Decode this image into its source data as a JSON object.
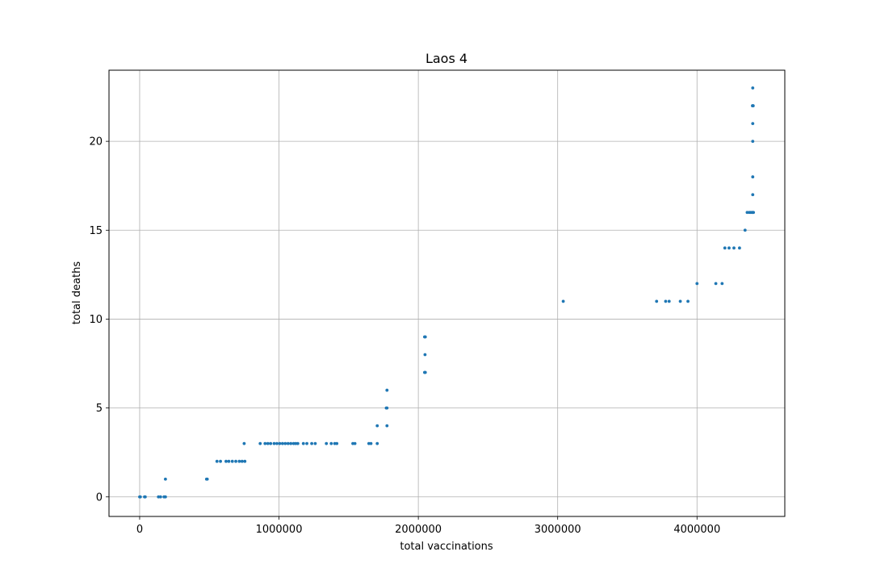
{
  "chart_data": {
    "type": "scatter",
    "title": "Laos 4",
    "xlabel": "total vaccinations",
    "ylabel": "total deaths",
    "xlim": [
      -220000,
      4630000
    ],
    "ylim": [
      -1.1,
      24.0
    ],
    "xticks": [
      0,
      1000000,
      2000000,
      3000000,
      4000000
    ],
    "xtick_labels": [
      "0",
      "1000000",
      "2000000",
      "3000000",
      "4000000"
    ],
    "yticks": [
      0,
      5,
      10,
      15,
      20
    ],
    "ytick_labels": [
      "0",
      "5",
      "10",
      "15",
      "20"
    ],
    "grid": true,
    "marker_color": "#1f77b4",
    "points": [
      {
        "x": 0,
        "y": 0
      },
      {
        "x": 5000,
        "y": 0
      },
      {
        "x": 35000,
        "y": 0
      },
      {
        "x": 40000,
        "y": 0
      },
      {
        "x": 135000,
        "y": 0
      },
      {
        "x": 150000,
        "y": 0
      },
      {
        "x": 175000,
        "y": 0
      },
      {
        "x": 185000,
        "y": 0
      },
      {
        "x": 185000,
        "y": 1
      },
      {
        "x": 480000,
        "y": 1
      },
      {
        "x": 485000,
        "y": 1
      },
      {
        "x": 555000,
        "y": 2
      },
      {
        "x": 580000,
        "y": 2
      },
      {
        "x": 620000,
        "y": 2
      },
      {
        "x": 640000,
        "y": 2
      },
      {
        "x": 665000,
        "y": 2
      },
      {
        "x": 690000,
        "y": 2
      },
      {
        "x": 715000,
        "y": 2
      },
      {
        "x": 735000,
        "y": 2
      },
      {
        "x": 755000,
        "y": 2
      },
      {
        "x": 750000,
        "y": 3
      },
      {
        "x": 865000,
        "y": 3
      },
      {
        "x": 900000,
        "y": 3
      },
      {
        "x": 920000,
        "y": 3
      },
      {
        "x": 940000,
        "y": 3
      },
      {
        "x": 965000,
        "y": 3
      },
      {
        "x": 985000,
        "y": 3
      },
      {
        "x": 1005000,
        "y": 3
      },
      {
        "x": 1025000,
        "y": 3
      },
      {
        "x": 1045000,
        "y": 3
      },
      {
        "x": 1065000,
        "y": 3
      },
      {
        "x": 1085000,
        "y": 3
      },
      {
        "x": 1105000,
        "y": 3
      },
      {
        "x": 1120000,
        "y": 3
      },
      {
        "x": 1135000,
        "y": 3
      },
      {
        "x": 1175000,
        "y": 3
      },
      {
        "x": 1200000,
        "y": 3
      },
      {
        "x": 1235000,
        "y": 3
      },
      {
        "x": 1260000,
        "y": 3
      },
      {
        "x": 1340000,
        "y": 3
      },
      {
        "x": 1375000,
        "y": 3
      },
      {
        "x": 1400000,
        "y": 3
      },
      {
        "x": 1415000,
        "y": 3
      },
      {
        "x": 1530000,
        "y": 3
      },
      {
        "x": 1545000,
        "y": 3
      },
      {
        "x": 1645000,
        "y": 3
      },
      {
        "x": 1660000,
        "y": 3
      },
      {
        "x": 1705000,
        "y": 3
      },
      {
        "x": 1705000,
        "y": 4
      },
      {
        "x": 1775000,
        "y": 4
      },
      {
        "x": 1770000,
        "y": 5
      },
      {
        "x": 1775000,
        "y": 5
      },
      {
        "x": 1775000,
        "y": 6
      },
      {
        "x": 2045000,
        "y": 7
      },
      {
        "x": 2050000,
        "y": 7
      },
      {
        "x": 2048000,
        "y": 8
      },
      {
        "x": 2045000,
        "y": 9
      },
      {
        "x": 2050000,
        "y": 9
      },
      {
        "x": 3040000,
        "y": 11
      },
      {
        "x": 3710000,
        "y": 11
      },
      {
        "x": 3775000,
        "y": 11
      },
      {
        "x": 3800000,
        "y": 11
      },
      {
        "x": 3880000,
        "y": 11
      },
      {
        "x": 3935000,
        "y": 11
      },
      {
        "x": 4000000,
        "y": 12
      },
      {
        "x": 4135000,
        "y": 12
      },
      {
        "x": 4180000,
        "y": 12
      },
      {
        "x": 4200000,
        "y": 14
      },
      {
        "x": 4230000,
        "y": 14
      },
      {
        "x": 4265000,
        "y": 14
      },
      {
        "x": 4305000,
        "y": 14
      },
      {
        "x": 4345000,
        "y": 15
      },
      {
        "x": 4360000,
        "y": 16
      },
      {
        "x": 4375000,
        "y": 16
      },
      {
        "x": 4385000,
        "y": 16
      },
      {
        "x": 4395000,
        "y": 16
      },
      {
        "x": 4400000,
        "y": 16
      },
      {
        "x": 4405000,
        "y": 16
      },
      {
        "x": 4400000,
        "y": 17
      },
      {
        "x": 4400000,
        "y": 18
      },
      {
        "x": 4400000,
        "y": 20
      },
      {
        "x": 4400000,
        "y": 21
      },
      {
        "x": 4398000,
        "y": 22
      },
      {
        "x": 4403000,
        "y": 22
      },
      {
        "x": 4400000,
        "y": 23
      }
    ]
  }
}
